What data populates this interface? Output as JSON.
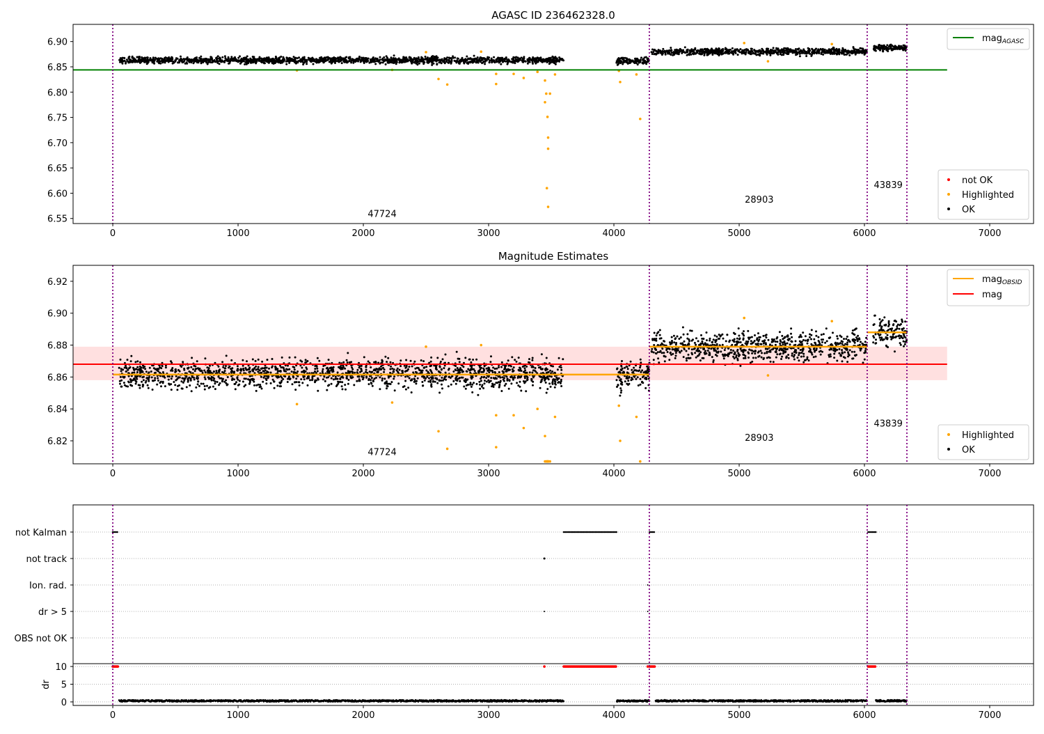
{
  "chart_data": {
    "type": "scatter",
    "xlim": [
      -317,
      7350
    ],
    "x_ticks": [
      0,
      1000,
      2000,
      3000,
      4000,
      5000,
      6000,
      7000
    ],
    "obsid_boundaries": [
      0,
      4283,
      6022,
      6339
    ],
    "colors": {
      "ok": "#000000",
      "highlighted": "#ffa500",
      "not_ok": "#ff0000",
      "agasc": "#008000",
      "mag": "#ff0000",
      "obsid": "#ffa500",
      "boundary": "#800080",
      "band": "#ffcccc"
    },
    "segments": [
      {
        "start": 50,
        "end": 3600,
        "mean_top": 6.863,
        "mean_bottom": 6.862
      },
      {
        "start": 4020,
        "end": 4285,
        "mean_top": 6.862,
        "mean_bottom": 6.862
      },
      {
        "start": 4300,
        "end": 6020,
        "mean_top": 6.88,
        "mean_bottom": 6.879
      },
      {
        "start": 6070,
        "end": 6340,
        "mean_top": 6.888,
        "mean_bottom": 6.888
      }
    ],
    "highlighted_points": [
      [
        1470,
        6.843
      ],
      [
        2230,
        6.844
      ],
      [
        2500,
        6.879
      ],
      [
        2600,
        6.826
      ],
      [
        2670,
        6.815
      ],
      [
        2940,
        6.88
      ],
      [
        3060,
        6.816
      ],
      [
        3060,
        6.836
      ],
      [
        3200,
        6.836
      ],
      [
        3280,
        6.828
      ],
      [
        3390,
        6.84
      ],
      [
        3450,
        6.823
      ],
      [
        3450,
        6.78
      ],
      [
        3460,
        6.797
      ],
      [
        3470,
        6.751
      ],
      [
        3475,
        6.71
      ],
      [
        3475,
        6.688
      ],
      [
        3465,
        6.61
      ],
      [
        3475,
        6.573
      ],
      [
        3490,
        6.797
      ],
      [
        3530,
        6.835
      ],
      [
        4040,
        6.842
      ],
      [
        4050,
        6.82
      ],
      [
        4180,
        6.835
      ],
      [
        4210,
        6.747
      ],
      [
        5040,
        6.897
      ],
      [
        5230,
        6.861
      ],
      [
        5740,
        6.895
      ]
    ],
    "panels": [
      {
        "title": "AGASC ID 236462328.0",
        "ylim": [
          6.54,
          6.934
        ],
        "y_ticks": [
          "6.55",
          "6.60",
          "6.65",
          "6.70",
          "6.75",
          "6.80",
          "6.85",
          "6.90"
        ],
        "mag_agasc": 6.844,
        "line_xrange": [
          -317,
          6660
        ],
        "obsid_labels": [
          {
            "text": "47724",
            "x": 2150,
            "y": 6.553
          },
          {
            "text": "28903",
            "x": 5160,
            "y": 6.581
          },
          {
            "text": "43839",
            "x": 6190,
            "y": 6.61
          }
        ],
        "legend_lines": [
          {
            "label": "mag",
            "sub": "AGASC"
          }
        ],
        "legend_points": [
          "not OK",
          "Highlighted",
          "OK"
        ]
      },
      {
        "title": "Magnitude Estimates",
        "ylim": [
          6.8056,
          6.93
        ],
        "y_ticks": [
          "6.82",
          "6.84",
          "6.86",
          "6.88",
          "6.90",
          "6.92"
        ],
        "mag": 6.868,
        "mag_band": [
          6.858,
          6.879
        ],
        "mag_obsid_steps": [
          [
            0,
            4283,
            6.8615
          ],
          [
            4283,
            6022,
            6.879
          ],
          [
            6022,
            6339,
            6.888
          ]
        ],
        "line_xrange": [
          -317,
          6660
        ],
        "obsid_labels": [
          {
            "text": "47724",
            "x": 2150,
            "y": 6.811
          },
          {
            "text": "28903",
            "x": 5160,
            "y": 6.82
          },
          {
            "text": "43839",
            "x": 6190,
            "y": 6.829
          }
        ],
        "legend_lines": [
          {
            "label": "mag",
            "sub": "OBSID"
          },
          {
            "label": "mag",
            "sub": ""
          }
        ],
        "legend_points": [
          "Highlighted",
          "OK"
        ]
      }
    ],
    "flags": {
      "categories": [
        "not Kalman",
        "not track",
        "Ion. rad.",
        "dr > 5",
        "OBS not OK"
      ],
      "not_kalman_ranges": [
        [
          0,
          40
        ],
        [
          3600,
          4020
        ],
        [
          4285,
          4330
        ],
        [
          6030,
          6090
        ]
      ],
      "not_track_points": [
        3445
      ],
      "ion_rad_points": [
        4270
      ],
      "dr_gt5_points": [
        3445,
        4270
      ]
    },
    "dr": {
      "ylabel": "dr",
      "ylim": [
        -1,
        10.8
      ],
      "y_ticks": [
        "0",
        "5",
        "10"
      ],
      "clip_value": 10,
      "typical_value": 0.3
    }
  }
}
